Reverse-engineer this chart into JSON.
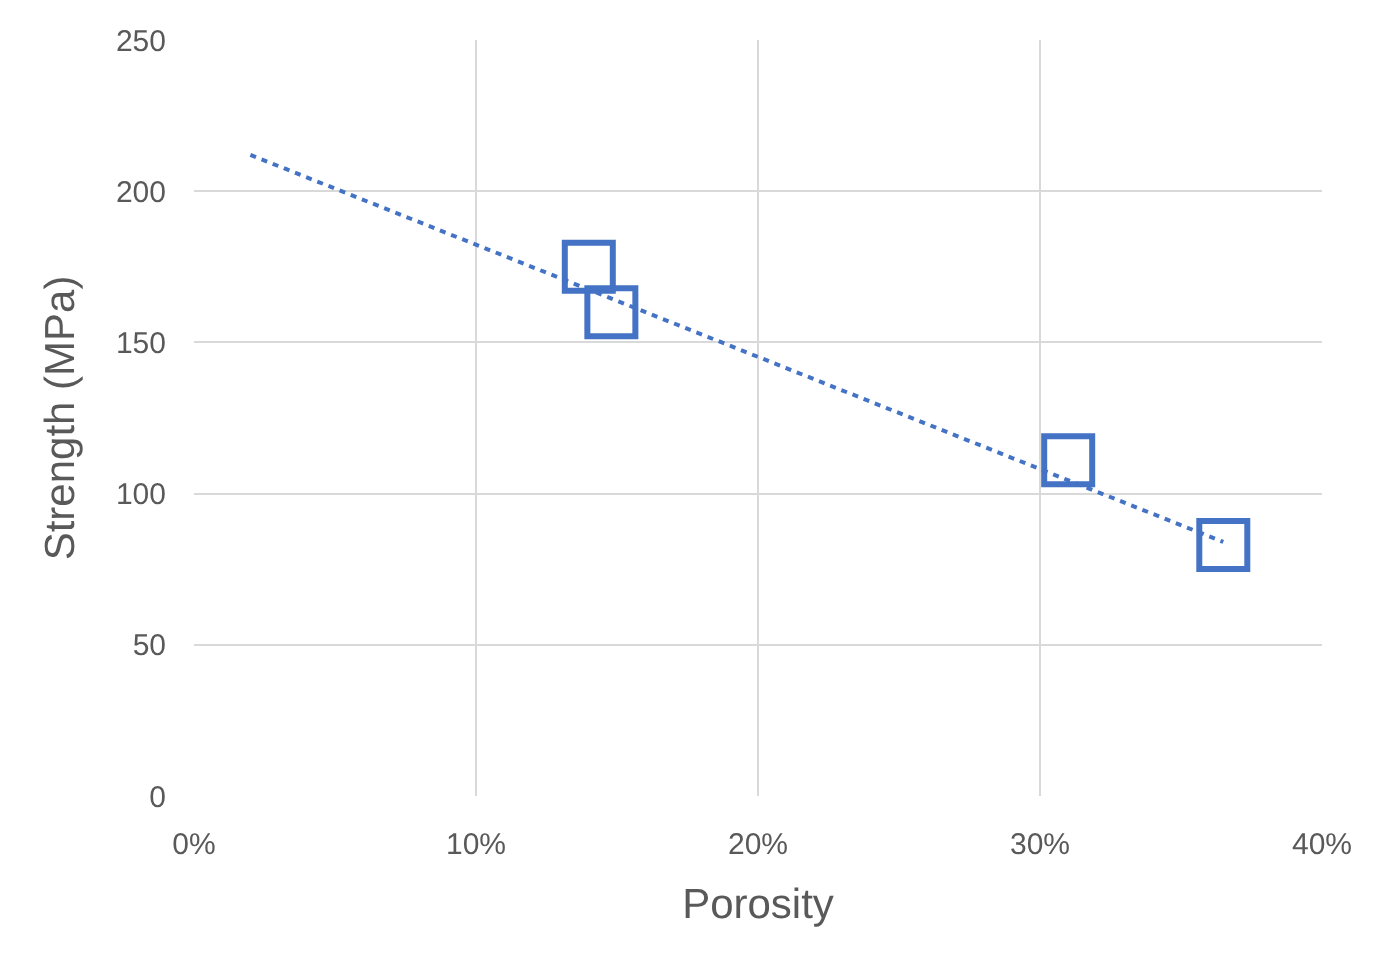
{
  "chart_data": {
    "type": "scatter",
    "xlabel": "Porosity",
    "ylabel": "Strength (MPa)",
    "xlim": [
      0,
      40
    ],
    "xticks": [
      {
        "value": 0,
        "label": "0%"
      },
      {
        "value": 10,
        "label": "10%"
      },
      {
        "value": 20,
        "label": "20%"
      },
      {
        "value": 30,
        "label": "30%"
      },
      {
        "value": 40,
        "label": "40%"
      }
    ],
    "ylim": [
      0,
      250
    ],
    "yticks": [
      0,
      50,
      100,
      150,
      200,
      250
    ],
    "grid": true,
    "series": [
      {
        "color": "#4472c4",
        "marker": "square",
        "x": [
          14,
          14.8,
          31,
          36.5
        ],
        "values": [
          175,
          160,
          111,
          83
        ]
      },
      {
        "type": "line",
        "color": "#4472c4",
        "marker": "none",
        "line_style": "dotted",
        "x": [
          2,
          36.5
        ],
        "values": [
          212,
          84
        ]
      }
    ]
  }
}
